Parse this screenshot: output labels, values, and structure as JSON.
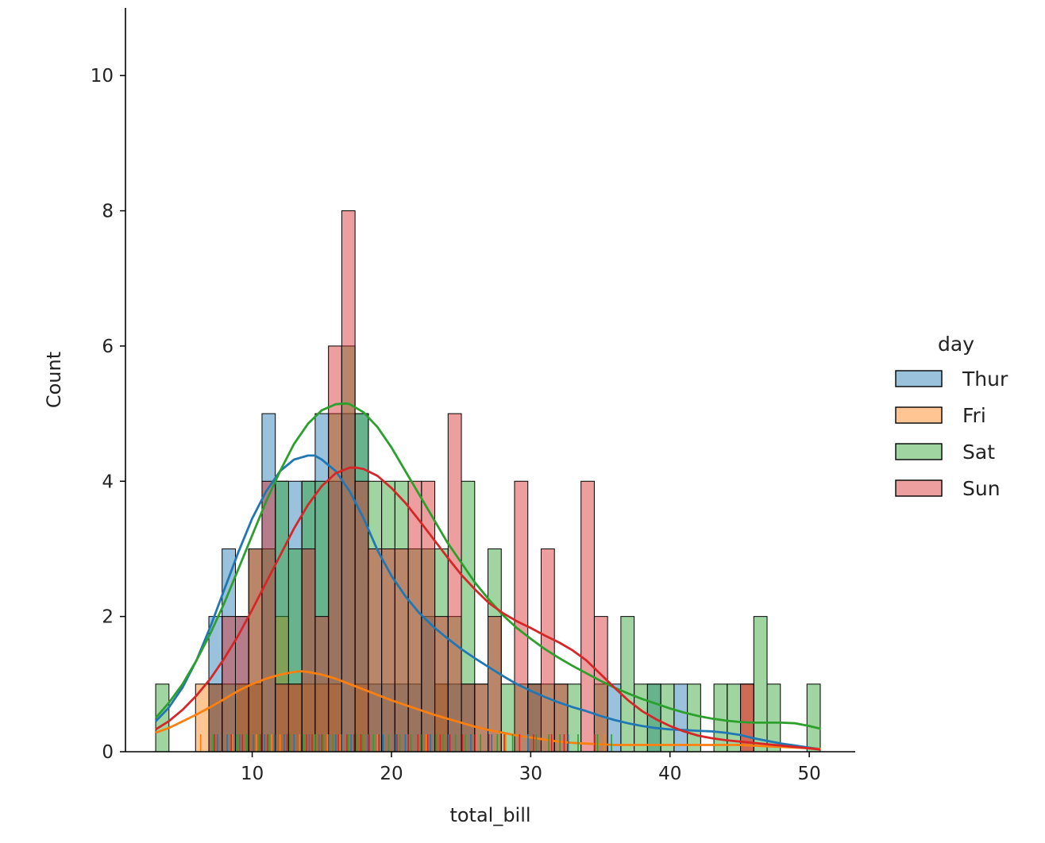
{
  "chart_data": {
    "type": "bar",
    "subtype": "stacked-overlaid-histogram-with-kde-and-rug",
    "title": "",
    "xlabel": "total_bill",
    "ylabel": "Count",
    "xlim": [
      0.9,
      53.3
    ],
    "ylim": [
      0,
      11
    ],
    "xticks": [
      10,
      20,
      30,
      40,
      50
    ],
    "yticks": [
      0,
      2,
      4,
      6,
      8,
      10
    ],
    "grid": false,
    "bin_start": 3.07,
    "bin_width": 0.9544,
    "legend": {
      "title": "day",
      "placement": "right",
      "entries": [
        {
          "label": "Thur",
          "color": "#1f77b4"
        },
        {
          "label": "Fri",
          "color": "#ff7f0e"
        },
        {
          "label": "Sat",
          "color": "#2ca02c"
        },
        {
          "label": "Sun",
          "color": "#d62728"
        }
      ]
    },
    "series": [
      {
        "name": "Thur",
        "color": "#1f77b4",
        "values": [
          0,
          0,
          0,
          0,
          2,
          3,
          2,
          1,
          5,
          4,
          4,
          4,
          5,
          4,
          5,
          5,
          1,
          1,
          1,
          1,
          2,
          1,
          1,
          1,
          0,
          0,
          0,
          0,
          1,
          0,
          0,
          0,
          0,
          0,
          1,
          0,
          0,
          1,
          0,
          1,
          0,
          0,
          0,
          0,
          1,
          0,
          0,
          0,
          0,
          0
        ]
      },
      {
        "name": "Fri",
        "color": "#ff7f0e",
        "values": [
          0,
          0,
          0,
          1,
          0,
          0,
          1,
          1,
          0,
          2,
          1,
          1,
          1,
          1,
          0,
          1,
          0,
          0,
          0,
          0,
          0,
          1,
          0,
          0,
          0,
          0,
          0,
          0,
          0,
          0,
          0,
          0,
          0,
          0,
          0,
          0,
          0,
          0,
          0,
          0,
          0,
          0,
          0,
          0,
          1,
          0,
          0,
          0,
          0,
          0
        ]
      },
      {
        "name": "Sat",
        "color": "#2ca02c",
        "values": [
          1,
          0,
          0,
          0,
          1,
          1,
          1,
          3,
          3,
          4,
          3,
          4,
          4,
          5,
          6,
          5,
          4,
          4,
          4,
          3,
          3,
          3,
          2,
          4,
          1,
          3,
          1,
          1,
          1,
          1,
          1,
          1,
          0,
          1,
          0,
          2,
          1,
          1,
          1,
          0,
          1,
          0,
          1,
          1,
          0,
          2,
          1,
          0,
          0,
          1
        ]
      },
      {
        "name": "Sun",
        "color": "#d62728",
        "values": [
          0,
          0,
          0,
          0,
          1,
          2,
          2,
          3,
          4,
          1,
          1,
          3,
          2,
          6,
          8,
          4,
          3,
          3,
          3,
          4,
          4,
          2,
          5,
          1,
          1,
          2,
          0,
          4,
          1,
          3,
          1,
          0,
          4,
          2,
          0,
          0,
          0,
          0,
          0,
          0,
          0,
          0,
          0,
          0,
          1,
          0,
          0,
          0,
          0,
          0
        ]
      }
    ],
    "kde": [
      {
        "name": "Thur",
        "color": "#1f77b4",
        "x": [
          3.07,
          4,
          5,
          6,
          7,
          8,
          9,
          10,
          11,
          12,
          13,
          14,
          14.5,
          15,
          16,
          17,
          18,
          19,
          20,
          21,
          22,
          23,
          24,
          25,
          26,
          27,
          28,
          29,
          30,
          31,
          32,
          33,
          34,
          35,
          36,
          37,
          38,
          39,
          40,
          41,
          42,
          43,
          44,
          45,
          46,
          47,
          48,
          49,
          50,
          50.81
        ],
        "y": [
          0.45,
          0.65,
          0.95,
          1.35,
          1.85,
          2.4,
          2.95,
          3.45,
          3.85,
          4.15,
          4.32,
          4.38,
          4.38,
          4.32,
          4.15,
          3.85,
          3.45,
          2.98,
          2.6,
          2.3,
          2.05,
          1.85,
          1.68,
          1.52,
          1.38,
          1.25,
          1.12,
          1.0,
          0.9,
          0.81,
          0.73,
          0.66,
          0.6,
          0.53,
          0.47,
          0.42,
          0.38,
          0.35,
          0.33,
          0.32,
          0.31,
          0.3,
          0.28,
          0.25,
          0.2,
          0.16,
          0.12,
          0.09,
          0.06,
          0.04
        ]
      },
      {
        "name": "Fri",
        "color": "#ff7f0e",
        "x": [
          3.07,
          4,
          5,
          6,
          7,
          8,
          9,
          10,
          11,
          12,
          13,
          13.5,
          14,
          15,
          16,
          17,
          18,
          19,
          20,
          21,
          22,
          23,
          24,
          25,
          26,
          27,
          28,
          29,
          30,
          31,
          32,
          33,
          34,
          35,
          36,
          37,
          38,
          39,
          40,
          41,
          42,
          43,
          44,
          45,
          46,
          47,
          48,
          49,
          50,
          50.81
        ],
        "y": [
          0.28,
          0.35,
          0.45,
          0.55,
          0.66,
          0.78,
          0.9,
          1.0,
          1.08,
          1.14,
          1.18,
          1.19,
          1.18,
          1.14,
          1.08,
          1.0,
          0.92,
          0.84,
          0.76,
          0.69,
          0.62,
          0.55,
          0.49,
          0.43,
          0.37,
          0.32,
          0.28,
          0.24,
          0.21,
          0.18,
          0.15,
          0.13,
          0.12,
          0.11,
          0.1,
          0.1,
          0.1,
          0.1,
          0.1,
          0.1,
          0.1,
          0.1,
          0.1,
          0.1,
          0.09,
          0.08,
          0.07,
          0.06,
          0.05,
          0.04
        ]
      },
      {
        "name": "Sat",
        "color": "#2ca02c",
        "x": [
          3.07,
          4,
          5,
          6,
          7,
          8,
          9,
          10,
          11,
          12,
          13,
          14,
          15,
          16,
          16.8,
          17,
          18,
          19,
          20,
          21,
          22,
          23,
          24,
          25,
          26,
          27,
          28,
          29,
          30,
          31,
          32,
          33,
          34,
          35,
          36,
          37,
          38,
          39,
          40,
          41,
          42,
          43,
          44,
          45,
          46,
          47,
          48,
          49,
          50,
          50.81
        ],
        "y": [
          0.5,
          0.72,
          1.0,
          1.35,
          1.75,
          2.2,
          2.7,
          3.2,
          3.7,
          4.15,
          4.55,
          4.85,
          5.05,
          5.14,
          5.15,
          5.14,
          5.02,
          4.8,
          4.5,
          4.15,
          3.8,
          3.45,
          3.1,
          2.8,
          2.5,
          2.25,
          2.02,
          1.83,
          1.67,
          1.52,
          1.39,
          1.27,
          1.16,
          1.05,
          0.95,
          0.86,
          0.78,
          0.71,
          0.64,
          0.58,
          0.53,
          0.49,
          0.46,
          0.44,
          0.43,
          0.43,
          0.43,
          0.42,
          0.38,
          0.34
        ]
      },
      {
        "name": "Sun",
        "color": "#d62728",
        "x": [
          3.07,
          4,
          5,
          6,
          7,
          8,
          9,
          10,
          11,
          12,
          13,
          14,
          15,
          16,
          17,
          17.5,
          18,
          19,
          20,
          21,
          22,
          23,
          24,
          25,
          26,
          27,
          28,
          29,
          30,
          31,
          32,
          33,
          34,
          35,
          36,
          37,
          38,
          39,
          40,
          41,
          42,
          43,
          44,
          45,
          46,
          47,
          48,
          49,
          50,
          50.81
        ],
        "y": [
          0.33,
          0.45,
          0.62,
          0.83,
          1.08,
          1.38,
          1.72,
          2.1,
          2.5,
          2.9,
          3.3,
          3.65,
          3.93,
          4.12,
          4.2,
          4.2,
          4.18,
          4.08,
          3.9,
          3.68,
          3.42,
          3.15,
          2.88,
          2.62,
          2.4,
          2.2,
          2.05,
          1.93,
          1.83,
          1.72,
          1.62,
          1.5,
          1.35,
          1.15,
          0.95,
          0.76,
          0.6,
          0.48,
          0.38,
          0.3,
          0.24,
          0.2,
          0.17,
          0.15,
          0.13,
          0.11,
          0.09,
          0.07,
          0.05,
          0.03
        ]
      }
    ],
    "rug": [
      {
        "name": "Thur",
        "color": "#1f77b4",
        "x": [
          7.5,
          8.2,
          9.1,
          10.1,
          10.9,
          11.6,
          12.3,
          13.0,
          13.4,
          14.1,
          14.8,
          15.5,
          16.0,
          16.4,
          17.1,
          18.3,
          19.4,
          20.3,
          21.0,
          22.8,
          24.1,
          25.7,
          27.2,
          29.8,
          32.7
        ]
      },
      {
        "name": "Fri",
        "color": "#ff7f0e",
        "x": [
          6.3,
          8.6,
          10.3,
          11.4,
          12.0,
          13.4,
          15.4,
          16.3,
          19.0,
          22.5,
          28.2,
          35.3
        ]
      },
      {
        "name": "Sat",
        "color": "#2ca02c",
        "x": [
          7.2,
          8.9,
          9.6,
          10.5,
          11.2,
          12.7,
          13.7,
          14.5,
          15.1,
          15.8,
          16.9,
          17.5,
          17.9,
          18.7,
          19.8,
          20.6,
          21.4,
          22.1,
          23.2,
          23.7,
          24.6,
          25.3,
          26.4,
          27.6,
          28.7,
          30.4,
          31.3,
          32.1,
          33.4,
          34.8,
          35.8
        ]
      },
      {
        "name": "Sun",
        "color": "#d62728",
        "x": [
          7.3,
          8.5,
          9.3,
          10.6,
          11.1,
          12.5,
          13.9,
          14.3,
          15.0,
          16.2,
          16.8,
          17.3,
          17.8,
          18.4,
          19.1,
          20.4,
          21.2,
          21.9,
          22.6,
          23.5,
          24.2,
          25.1,
          26.0,
          27.0,
          28.1,
          29.2,
          30.2,
          31.5,
          32.4,
          34.6
        ]
      }
    ]
  }
}
